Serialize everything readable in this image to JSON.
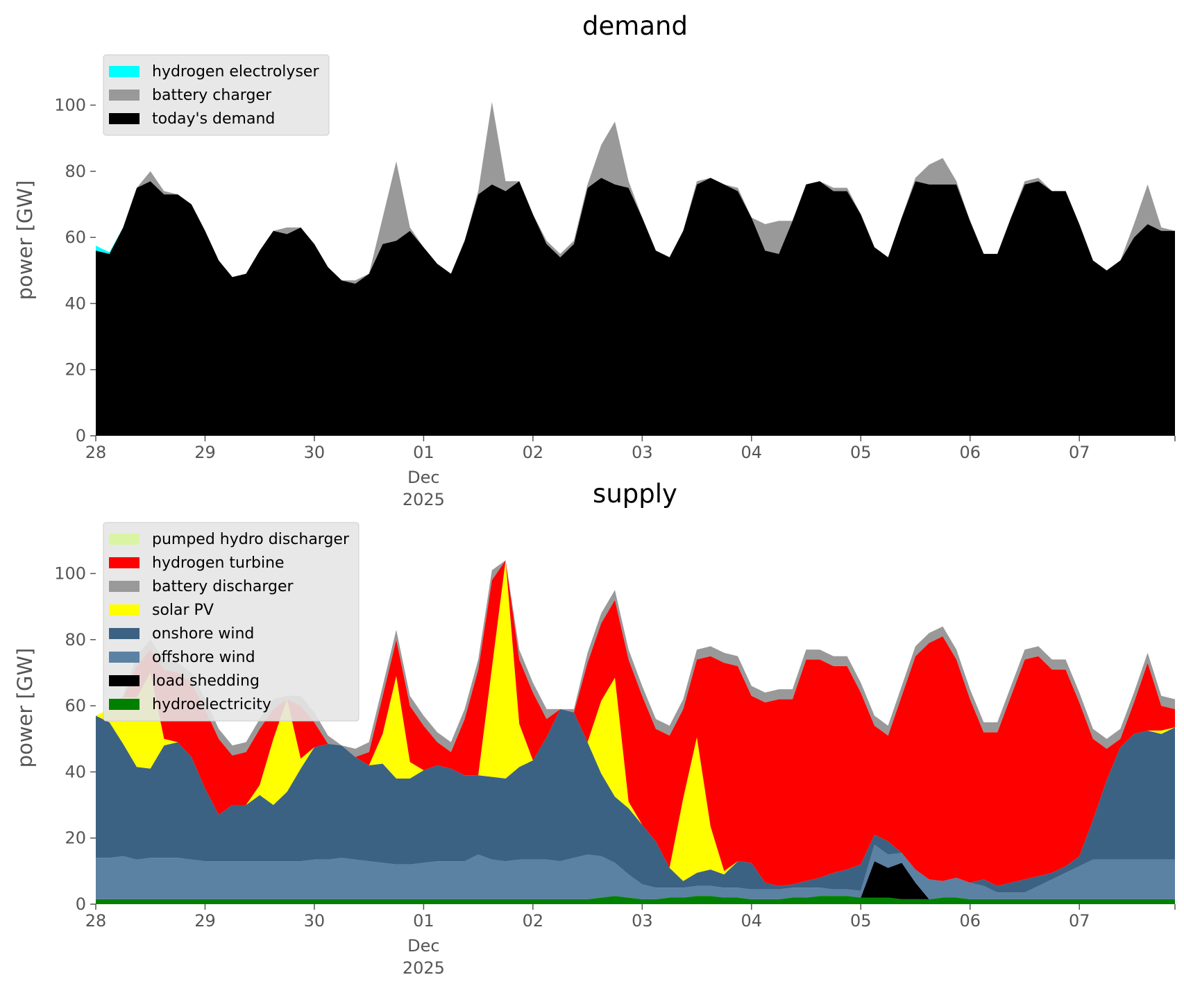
{
  "chart_data": [
    {
      "type": "area",
      "stacked": true,
      "title": "demand",
      "ylabel": "power [GW]",
      "xlabel": "",
      "ylim": [
        0,
        115
      ],
      "y_ticks": [
        0,
        20,
        40,
        60,
        80,
        100
      ],
      "x_range": [
        "2025-11-28",
        "2025-12-07 21:00"
      ],
      "x_tick_labels": [
        "28",
        "29",
        "30",
        "01",
        "02",
        "03",
        "04",
        "05",
        "06",
        "07"
      ],
      "x_tick_sublabel": [
        "Dec",
        "2025"
      ],
      "grid": false,
      "legend": "top-left",
      "x_hours": [
        0,
        3,
        6,
        9,
        12,
        15,
        18,
        21,
        24,
        27,
        30,
        33,
        36,
        39,
        42,
        45,
        48,
        51,
        54,
        57,
        60,
        63,
        66,
        69,
        72,
        75,
        78,
        81,
        84,
        87,
        90,
        93,
        96,
        99,
        102,
        105,
        108,
        111,
        114,
        117,
        120,
        123,
        126,
        129,
        132,
        135,
        138,
        141,
        144,
        147,
        150,
        153,
        156,
        159,
        162,
        165,
        168,
        171,
        174,
        177,
        180,
        183,
        186,
        189,
        192,
        195,
        198,
        201,
        204,
        207,
        210,
        213,
        216,
        219,
        222,
        225,
        228,
        231,
        234,
        237
      ],
      "series": [
        {
          "name": "today's demand",
          "color": "#000000",
          "values": [
            56,
            55,
            63,
            75,
            77,
            73,
            73,
            70,
            62,
            53,
            48,
            49,
            56,
            62,
            61,
            63,
            58,
            51,
            47,
            46,
            49,
            58,
            59,
            62,
            57,
            52,
            49,
            59,
            73,
            76,
            74,
            77,
            67,
            58,
            54,
            58,
            75,
            78,
            76,
            75,
            66,
            56,
            54,
            62,
            76,
            78,
            76,
            74,
            66,
            56,
            55,
            65,
            76,
            77,
            74,
            74,
            67,
            57,
            54,
            66,
            77,
            76,
            76,
            76,
            65,
            55,
            55,
            66,
            76,
            77,
            74,
            74,
            64,
            53,
            50,
            53,
            60,
            64,
            62,
            62
          ]
        },
        {
          "name": "battery charger",
          "color": "#999999",
          "values": [
            0,
            0,
            0,
            0,
            3,
            1,
            0,
            0,
            0,
            0,
            0,
            0,
            0,
            0,
            2,
            0,
            0,
            0,
            0,
            1,
            0,
            8,
            24,
            1,
            0,
            0,
            0,
            0,
            1,
            25,
            3,
            0,
            0,
            1,
            1,
            1,
            1,
            10,
            19,
            2,
            0,
            0,
            0,
            0,
            1,
            0,
            0,
            1,
            0,
            8,
            10,
            0,
            0,
            0,
            1,
            1,
            0,
            0,
            0,
            0,
            1,
            6,
            8,
            1,
            0,
            0,
            0,
            0,
            1,
            1,
            0,
            0,
            0,
            0,
            0,
            0,
            4,
            12,
            1,
            0
          ]
        },
        {
          "name": "hydrogen electrolyser",
          "color": "#00ffff",
          "values": [
            1.5,
            0.5,
            0,
            0,
            0,
            0,
            0,
            0,
            0,
            0,
            0,
            0,
            0,
            0,
            0,
            0,
            0,
            0,
            0,
            0,
            0,
            0,
            0,
            0,
            0,
            0,
            0,
            0,
            0,
            0,
            0,
            0,
            0,
            0,
            0,
            0,
            0,
            0,
            0,
            0,
            0,
            0,
            0,
            0,
            0,
            0,
            0,
            0,
            0,
            0,
            0,
            0,
            0,
            0,
            0,
            0,
            0,
            0,
            0,
            0,
            0,
            0,
            0,
            0,
            0,
            0,
            0,
            0,
            0,
            0,
            0,
            0,
            0,
            0,
            0,
            0,
            0,
            0,
            0,
            0
          ]
        }
      ]
    },
    {
      "type": "area",
      "stacked": true,
      "title": "supply",
      "ylabel": "power [GW]",
      "xlabel": "",
      "ylim": [
        0,
        115
      ],
      "y_ticks": [
        0,
        20,
        40,
        60,
        80,
        100
      ],
      "x_range": [
        "2025-11-28",
        "2025-12-07 21:00"
      ],
      "x_tick_labels": [
        "28",
        "29",
        "30",
        "01",
        "02",
        "03",
        "04",
        "05",
        "06",
        "07"
      ],
      "x_tick_sublabel": [
        "Dec",
        "2025"
      ],
      "grid": false,
      "legend": "top-left",
      "x_hours": [
        0,
        3,
        6,
        9,
        12,
        15,
        18,
        21,
        24,
        27,
        30,
        33,
        36,
        39,
        42,
        45,
        48,
        51,
        54,
        57,
        60,
        63,
        66,
        69,
        72,
        75,
        78,
        81,
        84,
        87,
        90,
        93,
        96,
        99,
        102,
        105,
        108,
        111,
        114,
        117,
        120,
        123,
        126,
        129,
        132,
        135,
        138,
        141,
        144,
        147,
        150,
        153,
        156,
        159,
        162,
        165,
        168,
        171,
        174,
        177,
        180,
        183,
        186,
        189,
        192,
        195,
        198,
        201,
        204,
        207,
        210,
        213,
        216,
        219,
        222,
        225,
        228,
        231,
        234,
        237
      ],
      "series": [
        {
          "name": "hydroelectricity",
          "color": "#008000",
          "values": [
            1.5,
            1.5,
            1.5,
            1.5,
            1.5,
            1.5,
            1.5,
            1.5,
            1.5,
            1.5,
            1.5,
            1.5,
            1.5,
            1.5,
            1.5,
            1.5,
            1.5,
            1.5,
            1.5,
            1.5,
            1.5,
            1.5,
            1.5,
            1.5,
            1.5,
            1.5,
            1.5,
            1.5,
            1.5,
            1.5,
            1.5,
            1.5,
            1.5,
            1.5,
            1.5,
            1.5,
            1.5,
            2,
            2.5,
            2,
            1.5,
            1.5,
            2,
            2,
            2.5,
            2.5,
            2,
            2,
            1.5,
            1.5,
            1.5,
            2,
            2,
            2.5,
            2.5,
            2.5,
            2,
            2,
            2,
            1.5,
            1.5,
            1.5,
            2,
            2,
            1.5,
            1.5,
            1.5,
            1.5,
            1.5,
            1.5,
            1.5,
            1.5,
            1.5,
            1.5,
            1.5,
            1.5,
            1.5,
            1.5,
            1.5,
            1.5
          ]
        },
        {
          "name": "load shedding",
          "color": "#000000",
          "values": [
            0,
            0,
            0,
            0,
            0,
            0,
            0,
            0,
            0,
            0,
            0,
            0,
            0,
            0,
            0,
            0,
            0,
            0,
            0,
            0,
            0,
            0,
            0,
            0,
            0,
            0,
            0,
            0,
            0,
            0,
            0,
            0,
            0,
            0,
            0,
            0,
            0,
            0,
            0,
            0,
            0,
            0,
            0,
            0,
            0,
            0,
            0,
            0,
            0,
            0,
            0,
            0,
            0,
            0,
            0,
            0,
            0,
            11,
            9,
            11,
            5,
            0,
            0,
            0,
            0,
            0,
            0,
            0,
            0,
            0,
            0,
            0,
            0,
            0,
            0,
            0,
            0,
            0,
            0,
            0
          ]
        },
        {
          "name": "offshore wind",
          "color": "#5b81a3",
          "values": [
            12.5,
            12.5,
            13,
            12,
            12.5,
            12.5,
            12.5,
            12,
            11.5,
            11.5,
            11.5,
            11.5,
            11.5,
            11.5,
            11.5,
            11.5,
            12,
            12,
            12.5,
            12,
            11.5,
            11,
            10.5,
            10.5,
            11,
            11.5,
            11.5,
            11.5,
            13.5,
            12,
            11.5,
            12,
            12,
            12,
            11.5,
            12.5,
            13.5,
            12.5,
            10,
            7,
            4.5,
            3.5,
            3,
            3,
            3,
            3,
            3,
            3,
            3,
            3,
            3,
            3,
            3,
            2.5,
            2,
            2,
            2,
            5,
            4,
            3,
            4,
            6,
            5,
            6,
            5,
            4,
            2,
            2,
            2,
            4,
            6,
            8,
            10,
            12,
            12,
            12,
            12,
            12,
            12,
            12
          ]
        },
        {
          "name": "onshore wind",
          "color": "#3c6283",
          "values": [
            43,
            41,
            34,
            28,
            27,
            34,
            35,
            31,
            22,
            14,
            17,
            17,
            20,
            17,
            21,
            28,
            34,
            35,
            34,
            31,
            29,
            30,
            26,
            26,
            28,
            29,
            28,
            26,
            24,
            25,
            25,
            28,
            30,
            37,
            46,
            44,
            34,
            25,
            20,
            20,
            18,
            14,
            6,
            2,
            4,
            5,
            4,
            8,
            8,
            2,
            1,
            1,
            2,
            3,
            5,
            6,
            8,
            3,
            4,
            0,
            0,
            0,
            0,
            0,
            0,
            2,
            2,
            3,
            4,
            3,
            2,
            2,
            3,
            12,
            24,
            34,
            38,
            39,
            38,
            40
          ]
        },
        {
          "name": "solar PV",
          "color": "#ffff00",
          "values": [
            0,
            4,
            14,
            21,
            29,
            2,
            0,
            0,
            0,
            0,
            0,
            0,
            3,
            20,
            28,
            3,
            0,
            0,
            0,
            0,
            0,
            9,
            31,
            5,
            0,
            0,
            0,
            0,
            0,
            33,
            66,
            13,
            0,
            0,
            0,
            0,
            0,
            22,
            36,
            2,
            0,
            0,
            0,
            25,
            41,
            13,
            1,
            0,
            0,
            0,
            0,
            0,
            0,
            0,
            0,
            0,
            0,
            0,
            0,
            0,
            0,
            0,
            0,
            0,
            0,
            0,
            0,
            0,
            0,
            0,
            0,
            0,
            0,
            0,
            0,
            0,
            0,
            0,
            1,
            0
          ]
        },
        {
          "name": "battery discharger",
          "color": "#999999",
          "values": [
            0,
            0,
            0,
            0,
            0,
            0,
            0,
            0,
            0,
            0,
            0,
            0,
            0,
            0,
            0,
            0,
            0,
            0,
            0,
            0,
            0,
            0,
            0,
            0,
            0,
            0,
            0,
            0,
            0,
            0,
            0,
            0,
            0,
            0,
            0,
            0,
            0,
            0,
            0,
            0,
            0,
            0,
            0,
            0,
            0,
            0,
            0,
            0,
            0,
            0,
            0,
            0,
            0,
            0,
            0,
            0,
            0,
            0,
            0,
            0,
            0,
            0,
            0,
            0,
            0,
            0,
            0,
            0,
            0,
            0,
            0,
            0,
            0,
            0,
            0,
            0,
            0,
            0,
            0,
            0
          ]
        },
        {
          "name": "hydrogen turbine",
          "color": "#ff0000",
          "values": [
            0,
            0,
            0,
            0,
            0,
            0,
            0,
            0,
            0,
            0,
            0,
            0,
            0,
            0,
            0,
            0,
            0,
            0,
            0,
            0,
            0,
            0,
            0,
            0,
            0,
            0,
            0,
            0,
            0,
            0,
            0,
            0,
            0,
            0,
            0,
            0,
            0,
            0,
            0,
            0,
            0,
            0,
            0,
            0,
            0,
            0,
            0,
            0,
            0,
            0,
            0,
            0,
            0,
            0,
            0,
            0,
            0,
            0,
            0,
            0,
            0,
            0,
            0,
            0,
            0,
            0,
            0,
            0,
            0,
            0,
            0,
            0,
            0,
            0,
            0,
            0,
            0,
            0,
            0,
            0
          ]
        },
        {
          "name": "pumped hydro discharger",
          "color": "#d9f5a4",
          "values": [
            0,
            0,
            0,
            0,
            0,
            0,
            0,
            0,
            0,
            0,
            0,
            0,
            0,
            0,
            0,
            0,
            0,
            0,
            0,
            0,
            0,
            0,
            0,
            0,
            0,
            0,
            0,
            0,
            0,
            0,
            0,
            0,
            0,
            0,
            0,
            0,
            0,
            0,
            0,
            0,
            0,
            0,
            0,
            0,
            0,
            0,
            0,
            0,
            0,
            0,
            0,
            0,
            0,
            0,
            0,
            0,
            0,
            0,
            0,
            0,
            0,
            0,
            0,
            0,
            0,
            0,
            0,
            0,
            0,
            0,
            0,
            0,
            0,
            0,
            0,
            0,
            0,
            0,
            0,
            0
          ]
        }
      ],
      "total": [
        56,
        55,
        63,
        75,
        80,
        74,
        73,
        70,
        62,
        53,
        48,
        49,
        56,
        62,
        63,
        63,
        58,
        51,
        47,
        47,
        49,
        66,
        83,
        63,
        57,
        52,
        49,
        59,
        74,
        101,
        77,
        77,
        67,
        59,
        55,
        59,
        76,
        88,
        95,
        77,
        66,
        56,
        54,
        62,
        77,
        78,
        76,
        75,
        66,
        64,
        65,
        65,
        77,
        77,
        75,
        75,
        67,
        57,
        54,
        66,
        78,
        82,
        84,
        77,
        65,
        55,
        55,
        66,
        77,
        78,
        74,
        74,
        64,
        53,
        50,
        53,
        64,
        76,
        63,
        62
      ],
      "legend_order": [
        "pumped hydro discharger",
        "hydrogen turbine",
        "battery discharger",
        "solar PV",
        "onshore wind",
        "offshore wind",
        "load shedding",
        "hydroelectricity"
      ]
    }
  ]
}
